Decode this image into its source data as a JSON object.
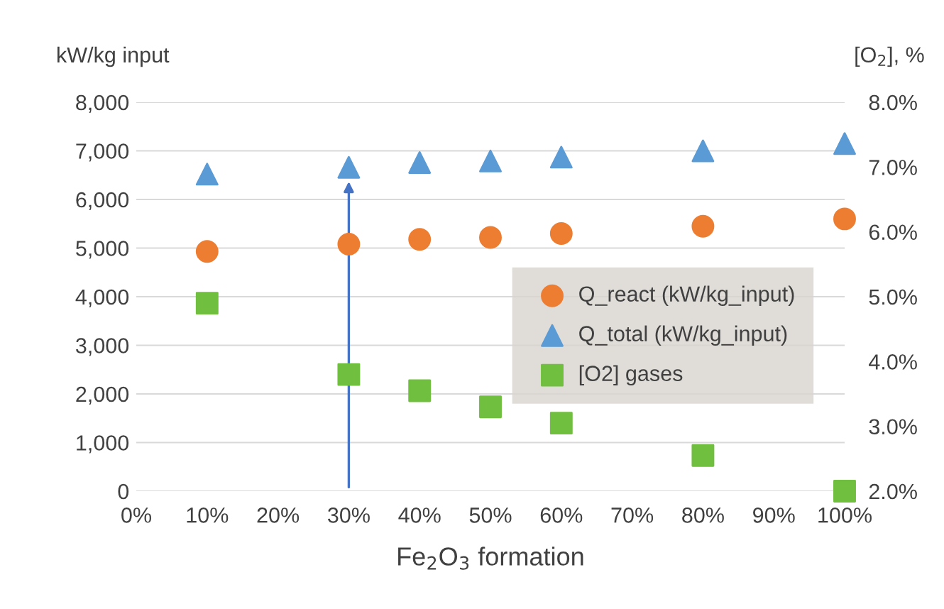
{
  "chart_data": {
    "type": "scatter",
    "xlabel": "Fe$_{2}$O$_{3}$ formation",
    "ylabel": "kW/kg input",
    "y2label": "[O$_{2}$], %",
    "x": [
      10,
      30,
      40,
      50,
      60,
      80,
      100
    ],
    "series": [
      {
        "name": "Q_react (kW/kg_input)",
        "color": "#ed7d31",
        "marker": "circle",
        "values": [
          4930,
          5080,
          5180,
          5220,
          5300,
          5450,
          5600
        ]
      },
      {
        "name": "Q_total (kW/kg_input)",
        "color": "#5b9bd5",
        "marker": "triangle",
        "values": [
          6520,
          6660,
          6760,
          6790,
          6870,
          7000,
          7150
        ]
      },
      {
        "name": "[O2] gases",
        "color": "#70bf3f",
        "marker": "square",
        "axis": "y2",
        "values": [
          4.9,
          3.8,
          3.55,
          3.3,
          3.05,
          2.55,
          2.0
        ]
      }
    ],
    "xlim": [
      0,
      100
    ],
    "xticks": [
      {
        "value": 0,
        "label": "0%"
      },
      {
        "value": 10,
        "label": "10%"
      },
      {
        "value": 20,
        "label": "20%"
      },
      {
        "value": 30,
        "label": "30%"
      },
      {
        "value": 40,
        "label": "40%"
      },
      {
        "value": 50,
        "label": "50%"
      },
      {
        "value": 60,
        "label": "60%"
      },
      {
        "value": 70,
        "label": "70%"
      },
      {
        "value": 80,
        "label": "80%"
      },
      {
        "value": 90,
        "label": "90%"
      },
      {
        "value": 100,
        "label": "100%"
      }
    ],
    "ylim": [
      0,
      8000
    ],
    "yticks": [
      {
        "value": 0,
        "label": "0"
      },
      {
        "value": 1000,
        "label": "1,000"
      },
      {
        "value": 2000,
        "label": "2,000"
      },
      {
        "value": 3000,
        "label": "3,000"
      },
      {
        "value": 4000,
        "label": "4,000"
      },
      {
        "value": 5000,
        "label": "5,000"
      },
      {
        "value": 6000,
        "label": "6,000"
      },
      {
        "value": 7000,
        "label": "7,000"
      },
      {
        "value": 8000,
        "label": "8,000"
      }
    ],
    "y2lim": [
      2,
      8
    ],
    "y2ticks": [
      {
        "value": 2,
        "label": "2.0%"
      },
      {
        "value": 3,
        "label": "3.0%"
      },
      {
        "value": 4,
        "label": "4.0%"
      },
      {
        "value": 5,
        "label": "5.0%"
      },
      {
        "value": 6,
        "label": "6.0%"
      },
      {
        "value": 7,
        "label": "7.0%"
      },
      {
        "value": 8,
        "label": "8.0%"
      }
    ],
    "grid": "y",
    "legend": "right"
  }
}
